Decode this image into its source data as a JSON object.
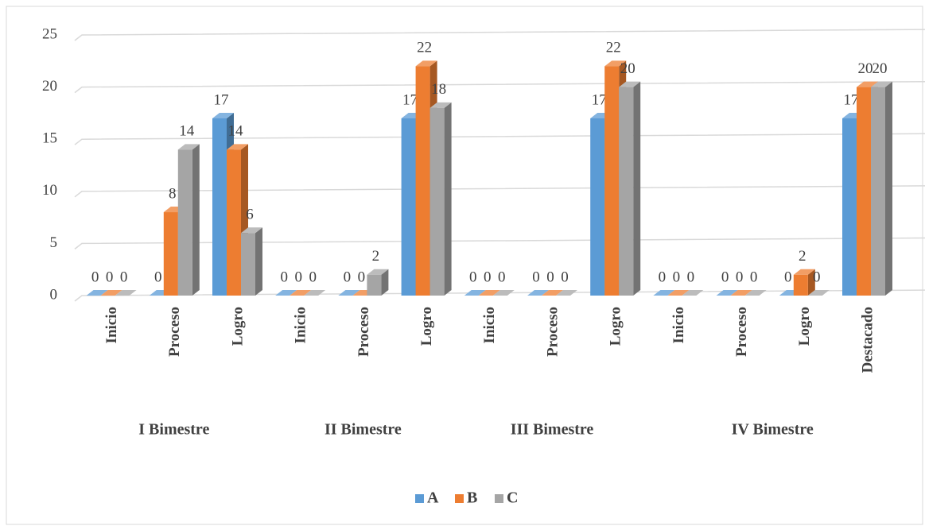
{
  "chart_data": {
    "type": "bar3d",
    "groups": [
      {
        "name": "I Bimestre",
        "categories": [
          "Inicio",
          "Proceso",
          "Logro"
        ]
      },
      {
        "name": "II Bimestre",
        "categories": [
          "Inicio",
          "Proceso",
          "Logro"
        ]
      },
      {
        "name": "III Bimestre",
        "categories": [
          "Inicio",
          "Proceso",
          "Logro"
        ]
      },
      {
        "name": "IV Bimestre",
        "categories": [
          "Inicio",
          "Proceso",
          "Logro",
          "Destacado"
        ]
      }
    ],
    "series": [
      {
        "name": "A",
        "color": "#5b9bd5",
        "values": [
          0,
          0,
          17,
          0,
          0,
          17,
          0,
          0,
          17,
          0,
          0,
          0,
          17
        ]
      },
      {
        "name": "B",
        "color": "#ed7d31",
        "values": [
          0,
          8,
          14,
          0,
          0,
          22,
          0,
          0,
          22,
          0,
          0,
          2,
          20
        ]
      },
      {
        "name": "C",
        "color": "#a5a5a5",
        "values": [
          0,
          14,
          6,
          0,
          2,
          18,
          0,
          0,
          20,
          0,
          0,
          0,
          20
        ]
      }
    ],
    "ylim": [
      0,
      25
    ],
    "yticks": [
      0,
      5,
      10,
      15,
      20,
      25
    ],
    "grid": true,
    "legend": "bottom"
  }
}
